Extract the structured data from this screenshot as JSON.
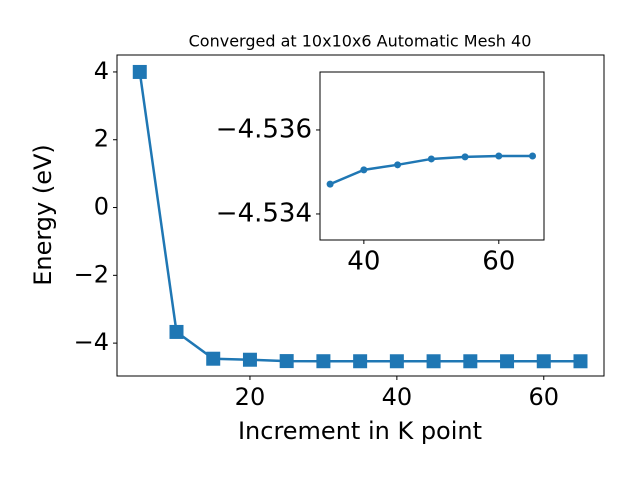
{
  "chart_data": [
    {
      "type": "line",
      "title": "Converged at 10x10x6 Automatic Mesh 40",
      "x_label": "Increment in K point",
      "y_label": "Energy (eV)",
      "x": [
        5,
        10,
        15,
        20,
        25,
        30,
        35,
        40,
        45,
        50,
        55,
        60,
        65
      ],
      "series": [
        {
          "color": "#1f77b4",
          "marker": "square",
          "values": [
            4.0,
            -3.67,
            -4.46,
            -4.49,
            -4.53,
            -4.534,
            -4.53471,
            -4.53505,
            -4.53517,
            -4.53531,
            -4.53536,
            -4.53538,
            -4.53538
          ]
        }
      ],
      "xlim": [
        1.9,
        68.2
      ],
      "ylim": [
        -4.97,
        4.5
      ],
      "xticks": [
        20,
        40,
        60
      ],
      "yticks": [
        {
          "value": -4,
          "label": "−4"
        },
        {
          "value": -2,
          "label": "−2"
        },
        0,
        2,
        4
      ]
    },
    {
      "type": "line",
      "x": [
        35,
        40,
        45,
        50,
        55,
        60,
        65
      ],
      "series": [
        {
          "color": "#1f77b4",
          "marker": "circle",
          "values": [
            -4.53471,
            -4.53505,
            -4.53517,
            -4.53531,
            -4.53536,
            -4.53538,
            -4.53538
          ]
        }
      ],
      "xlim": [
        33.5,
        66.7
      ],
      "ylim": [
        -4.53338,
        -4.53738
      ],
      "xticks": [
        40,
        60
      ],
      "yticks": [
        {
          "value": -4.534,
          "label": "−4.534"
        },
        {
          "value": -4.536,
          "label": "−4.536"
        }
      ]
    }
  ]
}
